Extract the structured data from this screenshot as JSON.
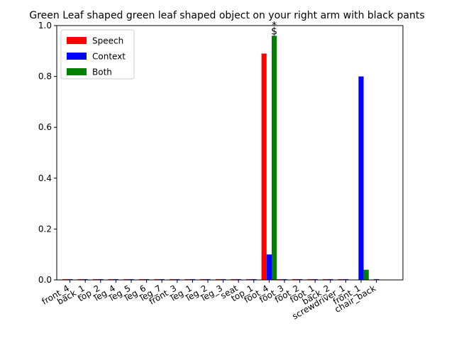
{
  "chart_data": {
    "type": "bar",
    "title": "Green Leaf shaped green leaf shaped object on your right arm with black pants",
    "xlabel": "",
    "ylabel": "",
    "ylim": [
      0,
      1.0
    ],
    "yticks": [
      "0.0",
      "0.2",
      "0.4",
      "0.6",
      "0.8",
      "1.0"
    ],
    "categories": [
      "front_4",
      "back_1",
      "top_2",
      "leg_4",
      "leg_5",
      "leg_6",
      "leg_7",
      "front_3",
      "leg_1",
      "leg_2",
      "leg_3",
      "seat",
      "top_1",
      "foot_4",
      "foot_3",
      "foot_2",
      "foot_1",
      "back_2",
      "screwdriver_1",
      "front_1",
      "chair_back"
    ],
    "series": [
      {
        "name": "Speech",
        "color": "#ff0000",
        "values": [
          0.003,
          0.003,
          0.003,
          0.003,
          0.003,
          0.003,
          0.003,
          0.003,
          0.003,
          0.003,
          0.003,
          0.003,
          0.003,
          0.89,
          0.003,
          0.003,
          0.003,
          0.003,
          0.003,
          0.0,
          0.0
        ]
      },
      {
        "name": "Context",
        "color": "#0000ff",
        "values": [
          0.003,
          0.003,
          0.003,
          0.003,
          0.003,
          0.003,
          0.003,
          0.003,
          0.003,
          0.003,
          0.003,
          0.003,
          0.003,
          0.1,
          0.003,
          0.003,
          0.003,
          0.003,
          0.003,
          0.8,
          0.003
        ]
      },
      {
        "name": "Both",
        "color": "#008000",
        "values": [
          0.0,
          0.0,
          0.0,
          0.0,
          0.0,
          0.0,
          0.0,
          0.0,
          0.0,
          0.0,
          0.0,
          0.0,
          0.0,
          0.96,
          0.0,
          0.0,
          0.0,
          0.0,
          0.0,
          0.04,
          0.0
        ]
      }
    ],
    "annotations": [
      {
        "category": "foot_4",
        "text": "*"
      },
      {
        "category": "foot_4",
        "text": "$"
      }
    ],
    "legend_position": "top-left",
    "grid": false
  }
}
